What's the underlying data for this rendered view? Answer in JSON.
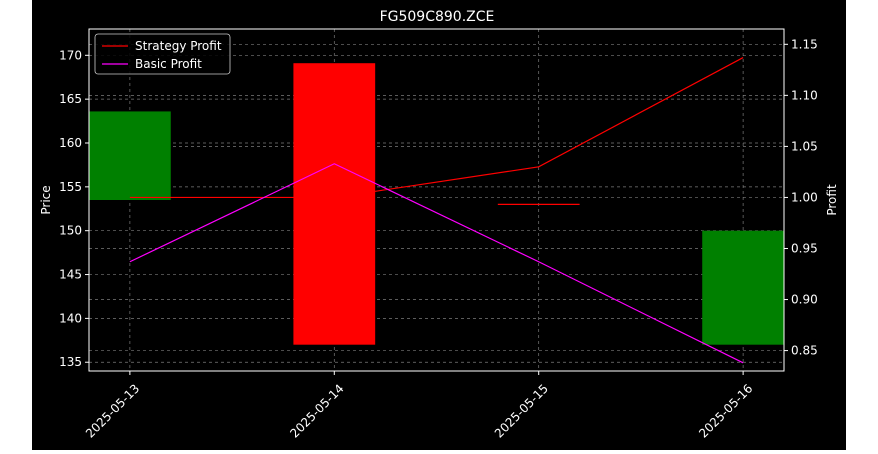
{
  "chart_data": {
    "type": "candlestick",
    "title": "FG509C890.ZCE",
    "x_categories": [
      "2025-05-13",
      "2025-05-14",
      "2025-05-15",
      "2025-05-16"
    ],
    "left_axis": {
      "label": "Price",
      "ylim": [
        134,
        173
      ],
      "ticks": [
        135,
        140,
        145,
        150,
        155,
        160,
        165,
        170
      ]
    },
    "right_axis": {
      "label": "Profit",
      "ylim": [
        0.83,
        1.165
      ],
      "ticks": [
        "0.85",
        "0.90",
        "0.95",
        "1.00",
        "1.05",
        "1.10",
        "1.15"
      ]
    },
    "candles": [
      {
        "date": "2025-05-13",
        "open": 153.5,
        "close": 163.6,
        "color": "#008000"
      },
      {
        "date": "2025-05-14",
        "open": 169.1,
        "close": 137.0,
        "color": "#ff0000"
      },
      {
        "date": "2025-05-15",
        "open": 153.0,
        "close": 153.0,
        "color": "#ff0000"
      },
      {
        "date": "2025-05-16",
        "open": 137.0,
        "close": 150.0,
        "color": "#008000"
      }
    ],
    "series": [
      {
        "name": "Strategy Profit",
        "axis": "right",
        "color": "#ff0000",
        "values": [
          1.0,
          1.0,
          1.03,
          1.137
        ]
      },
      {
        "name": "Basic Profit",
        "axis": "right",
        "color": "#ff00ff",
        "values": [
          0.937,
          1.033,
          0.937,
          0.838
        ]
      }
    ],
    "legend_position": "upper-left",
    "grid": true,
    "background": "#000000"
  }
}
